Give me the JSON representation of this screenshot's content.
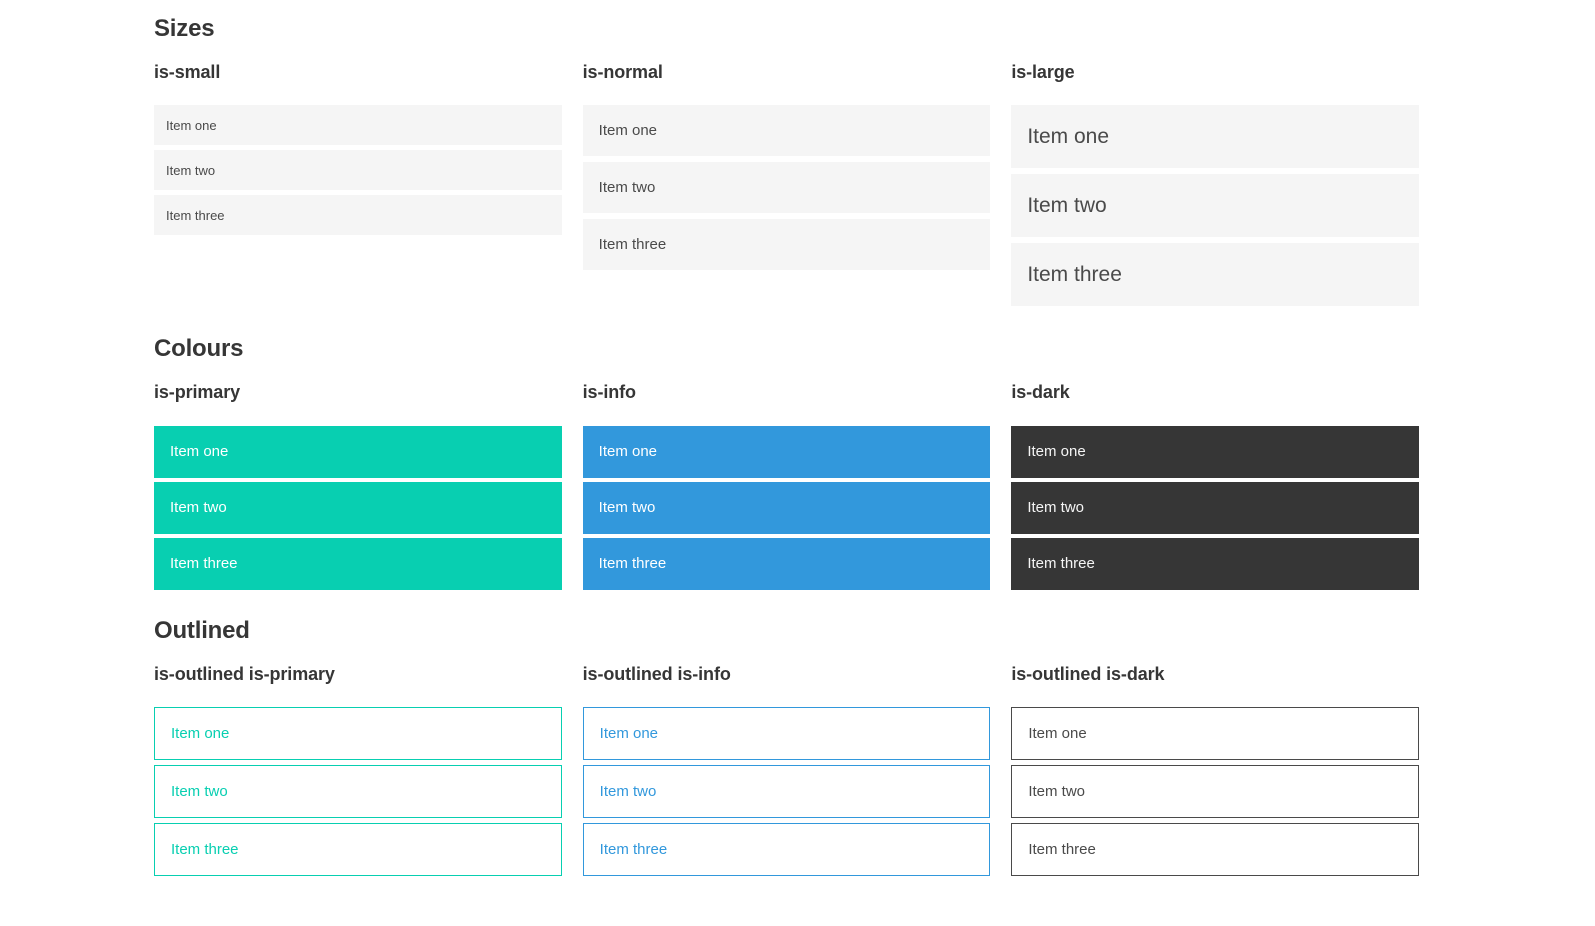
{
  "colors": {
    "primary": "#08cfb1",
    "info": "#3298dc",
    "dark": "#363636",
    "light_bg": "#f5f5f5",
    "text_dark": "#4a4a4a",
    "heading_text": "#363636"
  },
  "sections": [
    {
      "title": "Sizes",
      "columns": [
        {
          "heading": "is-small",
          "items": [
            "Item one",
            "Item two",
            "Item three"
          ]
        },
        {
          "heading": "is-normal",
          "items": [
            "Item one",
            "Item two",
            "Item three"
          ]
        },
        {
          "heading": "is-large",
          "items": [
            "Item one",
            "Item two",
            "Item three"
          ]
        }
      ]
    },
    {
      "title": "Colours",
      "columns": [
        {
          "heading": "is-primary",
          "items": [
            "Item one",
            "Item two",
            "Item three"
          ]
        },
        {
          "heading": "is-info",
          "items": [
            "Item one",
            "Item two",
            "Item three"
          ]
        },
        {
          "heading": "is-dark",
          "items": [
            "Item one",
            "Item two",
            "Item three"
          ]
        }
      ]
    },
    {
      "title": "Outlined",
      "columns": [
        {
          "heading": "is-outlined is-primary",
          "items": [
            "Item one",
            "Item two",
            "Item three"
          ]
        },
        {
          "heading": "is-outlined is-info",
          "items": [
            "Item one",
            "Item two",
            "Item three"
          ]
        },
        {
          "heading": "is-outlined is-dark",
          "items": [
            "Item one",
            "Item two",
            "Item three"
          ]
        }
      ]
    }
  ]
}
